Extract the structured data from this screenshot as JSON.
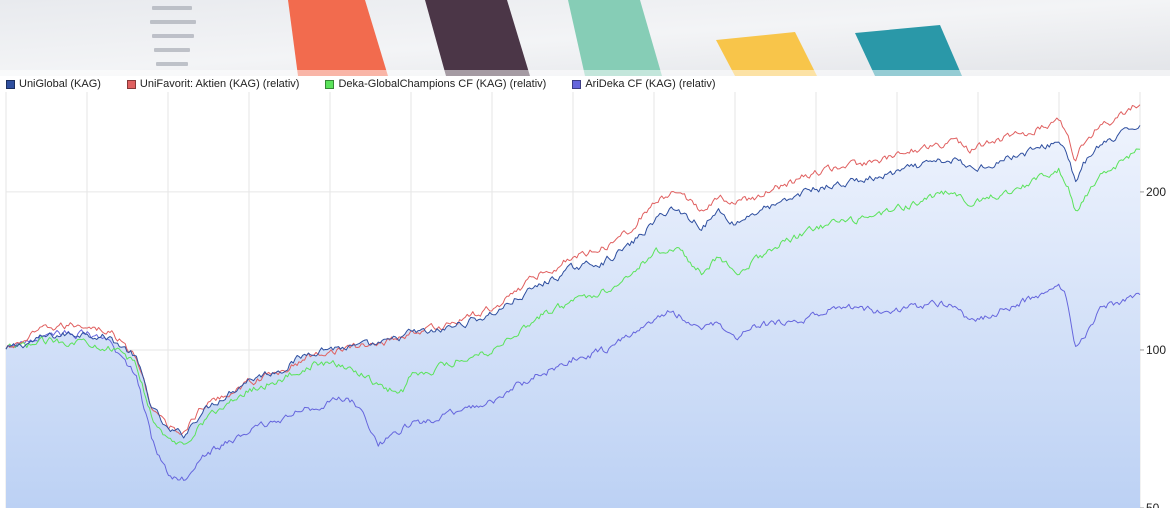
{
  "chart_data": {
    "type": "line",
    "title": "",
    "xlabel": "",
    "ylabel": "",
    "y_scale": "log",
    "y_ticks": [
      50,
      100,
      200
    ],
    "ylim": [
      50,
      310
    ],
    "x_index_range": [
      0,
      140
    ],
    "grid": true,
    "legend_position": "top-left",
    "fill_under_series": "UniGlobal (KAG)",
    "series": [
      {
        "name": "UniGlobal (KAG)",
        "color": "#2f4f9f",
        "values": [
          [
            0,
            100
          ],
          [
            5,
            106
          ],
          [
            10,
            108
          ],
          [
            13,
            105
          ],
          [
            16,
            97
          ],
          [
            18,
            78
          ],
          [
            20,
            70
          ],
          [
            22,
            69
          ],
          [
            24,
            76
          ],
          [
            27,
            82
          ],
          [
            30,
            88
          ],
          [
            34,
            92
          ],
          [
            38,
            100
          ],
          [
            40,
            101
          ],
          [
            43,
            101
          ],
          [
            47,
            103
          ],
          [
            50,
            108
          ],
          [
            53,
            108
          ],
          [
            56,
            112
          ],
          [
            60,
            117
          ],
          [
            63,
            125
          ],
          [
            66,
            133
          ],
          [
            70,
            143
          ],
          [
            74,
            148
          ],
          [
            77,
            158
          ],
          [
            80,
            175
          ],
          [
            82,
            187
          ],
          [
            84,
            180
          ],
          [
            86,
            172
          ],
          [
            88,
            184
          ],
          [
            90,
            174
          ],
          [
            93,
            185
          ],
          [
            96,
            190
          ],
          [
            99,
            202
          ],
          [
            102,
            205
          ],
          [
            105,
            210
          ],
          [
            108,
            213
          ],
          [
            111,
            220
          ],
          [
            114,
            226
          ],
          [
            117,
            230
          ],
          [
            119,
            222
          ],
          [
            121,
            225
          ],
          [
            124,
            233
          ],
          [
            127,
            240
          ],
          [
            130,
            250
          ],
          [
            131,
            238
          ],
          [
            132,
            210
          ],
          [
            133,
            225
          ],
          [
            135,
            245
          ],
          [
            137,
            252
          ],
          [
            140,
            270
          ]
        ]
      },
      {
        "name": "UniFavorit: Aktien (KAG) (relativ)",
        "color": "#e06060",
        "values": [
          [
            0,
            100
          ],
          [
            5,
            110
          ],
          [
            10,
            112
          ],
          [
            13,
            108
          ],
          [
            16,
            97
          ],
          [
            18,
            78
          ],
          [
            20,
            71
          ],
          [
            22,
            70
          ],
          [
            24,
            77
          ],
          [
            27,
            82
          ],
          [
            30,
            87
          ],
          [
            34,
            91
          ],
          [
            38,
            98
          ],
          [
            40,
            100
          ],
          [
            43,
            101
          ],
          [
            47,
            104
          ],
          [
            50,
            108
          ],
          [
            53,
            110
          ],
          [
            56,
            114
          ],
          [
            60,
            120
          ],
          [
            63,
            130
          ],
          [
            66,
            140
          ],
          [
            70,
            150
          ],
          [
            74,
            158
          ],
          [
            77,
            170
          ],
          [
            80,
            190
          ],
          [
            82,
            198
          ],
          [
            84,
            193
          ],
          [
            86,
            185
          ],
          [
            88,
            195
          ],
          [
            90,
            190
          ],
          [
            93,
            197
          ],
          [
            96,
            206
          ],
          [
            99,
            215
          ],
          [
            102,
            222
          ],
          [
            105,
            226
          ],
          [
            108,
            228
          ],
          [
            111,
            238
          ],
          [
            114,
            245
          ],
          [
            117,
            250
          ],
          [
            119,
            240
          ],
          [
            121,
            246
          ],
          [
            124,
            255
          ],
          [
            127,
            262
          ],
          [
            130,
            275
          ],
          [
            131,
            262
          ],
          [
            132,
            232
          ],
          [
            133,
            248
          ],
          [
            135,
            268
          ],
          [
            137,
            275
          ],
          [
            140,
            295
          ]
        ]
      },
      {
        "name": "Deka-GlobalChampions CF (KAG) (relativ)",
        "color": "#5be35b",
        "values": [
          [
            0,
            100
          ],
          [
            5,
            104
          ],
          [
            10,
            104
          ],
          [
            13,
            101
          ],
          [
            16,
            94
          ],
          [
            18,
            75
          ],
          [
            20,
            67
          ],
          [
            22,
            66
          ],
          [
            24,
            73
          ],
          [
            27,
            78
          ],
          [
            30,
            84
          ],
          [
            34,
            88
          ],
          [
            38,
            94
          ],
          [
            40,
            94
          ],
          [
            43,
            92
          ],
          [
            47,
            84
          ],
          [
            49,
            84
          ],
          [
            50,
            90
          ],
          [
            53,
            92
          ],
          [
            56,
            96
          ],
          [
            60,
            100
          ],
          [
            63,
            108
          ],
          [
            66,
            116
          ],
          [
            70,
            124
          ],
          [
            74,
            130
          ],
          [
            77,
            140
          ],
          [
            80,
            153
          ],
          [
            82,
            158
          ],
          [
            84,
            150
          ],
          [
            86,
            140
          ],
          [
            88,
            150
          ],
          [
            90,
            140
          ],
          [
            93,
            150
          ],
          [
            96,
            160
          ],
          [
            99,
            168
          ],
          [
            102,
            174
          ],
          [
            105,
            176
          ],
          [
            108,
            182
          ],
          [
            111,
            188
          ],
          [
            114,
            195
          ],
          [
            117,
            200
          ],
          [
            119,
            188
          ],
          [
            121,
            195
          ],
          [
            124,
            202
          ],
          [
            127,
            210
          ],
          [
            130,
            220
          ],
          [
            131,
            208
          ],
          [
            132,
            182
          ],
          [
            133,
            195
          ],
          [
            135,
            215
          ],
          [
            137,
            222
          ],
          [
            140,
            240
          ]
        ]
      },
      {
        "name": "AriDeka CF (KAG) (relativ)",
        "color": "#6666dd",
        "values": [
          [
            0,
            100
          ],
          [
            5,
            108
          ],
          [
            10,
            107
          ],
          [
            13,
            102
          ],
          [
            16,
            90
          ],
          [
            18,
            68
          ],
          [
            20,
            58
          ],
          [
            22,
            57
          ],
          [
            24,
            63
          ],
          [
            27,
            66
          ],
          [
            30,
            70
          ],
          [
            34,
            74
          ],
          [
            38,
            78
          ],
          [
            40,
            80
          ],
          [
            43,
            80
          ],
          [
            46,
            66
          ],
          [
            48,
            70
          ],
          [
            50,
            72
          ],
          [
            53,
            74
          ],
          [
            56,
            76
          ],
          [
            60,
            80
          ],
          [
            63,
            85
          ],
          [
            66,
            90
          ],
          [
            70,
            96
          ],
          [
            74,
            100
          ],
          [
            77,
            106
          ],
          [
            80,
            115
          ],
          [
            82,
            118
          ],
          [
            84,
            115
          ],
          [
            86,
            108
          ],
          [
            88,
            114
          ],
          [
            90,
            105
          ],
          [
            93,
            111
          ],
          [
            96,
            113
          ],
          [
            99,
            115
          ],
          [
            102,
            119
          ],
          [
            105,
            121
          ],
          [
            108,
            118
          ],
          [
            111,
            120
          ],
          [
            114,
            122
          ],
          [
            117,
            123
          ],
          [
            119,
            112
          ],
          [
            121,
            116
          ],
          [
            124,
            121
          ],
          [
            127,
            126
          ],
          [
            130,
            132
          ],
          [
            131,
            125
          ],
          [
            132,
            99
          ],
          [
            133,
            106
          ],
          [
            135,
            119
          ],
          [
            137,
            123
          ],
          [
            140,
            127
          ]
        ]
      }
    ]
  }
}
